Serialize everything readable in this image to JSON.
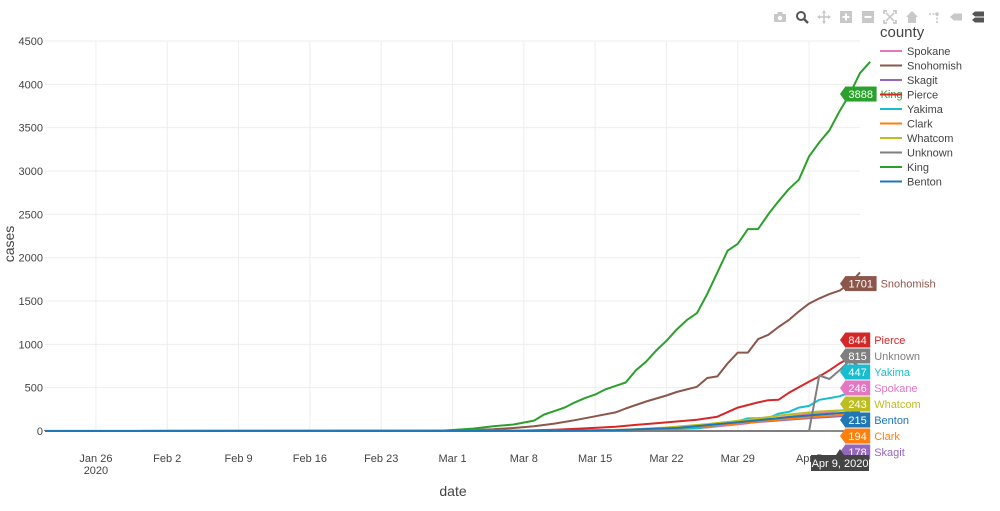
{
  "modebar": {
    "icons": [
      "camera-icon",
      "zoom-icon",
      "pan-icon",
      "zoom-in-icon",
      "zoom-out-icon",
      "autoscale-icon",
      "home-icon",
      "spike-lines-icon",
      "hover-closest-icon",
      "hover-compare-icon"
    ]
  },
  "chart_data": {
    "type": "line",
    "xlabel": "date",
    "ylabel": "cases",
    "ylim": [
      0,
      4500
    ],
    "yticks": [
      0,
      500,
      1000,
      1500,
      2000,
      2500,
      3000,
      3500,
      4000,
      4500
    ],
    "x_start": "2020-01-21",
    "x_end": "2020-04-10",
    "xticks": [
      {
        "date": "2020-01-26",
        "label": "Jan 26",
        "sublabel": "2020"
      },
      {
        "date": "2020-02-02",
        "label": "Feb 2"
      },
      {
        "date": "2020-02-09",
        "label": "Feb 9"
      },
      {
        "date": "2020-02-16",
        "label": "Feb 16"
      },
      {
        "date": "2020-02-23",
        "label": "Feb 23"
      },
      {
        "date": "2020-03-01",
        "label": "Mar 1"
      },
      {
        "date": "2020-03-08",
        "label": "Mar 8"
      },
      {
        "date": "2020-03-15",
        "label": "Mar 15"
      },
      {
        "date": "2020-03-22",
        "label": "Mar 22"
      },
      {
        "date": "2020-03-29",
        "label": "Mar 29"
      },
      {
        "date": "2020-04-05",
        "label": "Apr 5"
      }
    ],
    "grid": true,
    "legend": {
      "title": "county",
      "placement": "top-right"
    },
    "hover_date": "Apr 9, 2020",
    "series": [
      {
        "name": "Spokane",
        "color": "#e377c2",
        "hover": 246,
        "points": [
          [
            "2020-01-21",
            0
          ],
          [
            "2020-03-14",
            2
          ],
          [
            "2020-03-20",
            10
          ],
          [
            "2020-03-26",
            40
          ],
          [
            "2020-03-30",
            90
          ],
          [
            "2020-04-02",
            150
          ],
          [
            "2020-04-06",
            210
          ],
          [
            "2020-04-09",
            246
          ],
          [
            "2020-04-10",
            255
          ]
        ]
      },
      {
        "name": "Snohomish",
        "color": "#8c564b",
        "hover": 1701,
        "points": [
          [
            "2020-01-21",
            0
          ],
          [
            "2020-01-21",
            1
          ],
          [
            "2020-02-28",
            2
          ],
          [
            "2020-03-01",
            5
          ],
          [
            "2020-03-03",
            12
          ],
          [
            "2020-03-05",
            20
          ],
          [
            "2020-03-07",
            35
          ],
          [
            "2020-03-09",
            55
          ],
          [
            "2020-03-11",
            85
          ],
          [
            "2020-03-13",
            125
          ],
          [
            "2020-03-15",
            170
          ],
          [
            "2020-03-17",
            215
          ],
          [
            "2020-03-18",
            260
          ],
          [
            "2020-03-19",
            300
          ],
          [
            "2020-03-20",
            340
          ],
          [
            "2020-03-21",
            375
          ],
          [
            "2020-03-22",
            410
          ],
          [
            "2020-03-23",
            450
          ],
          [
            "2020-03-24",
            480
          ],
          [
            "2020-03-25",
            510
          ],
          [
            "2020-03-26",
            612
          ],
          [
            "2020-03-27",
            630
          ],
          [
            "2020-03-28",
            780
          ],
          [
            "2020-03-29",
            905
          ],
          [
            "2020-03-30",
            905
          ],
          [
            "2020-03-31",
            1060
          ],
          [
            "2020-04-01",
            1110
          ],
          [
            "2020-04-02",
            1200
          ],
          [
            "2020-04-03",
            1280
          ],
          [
            "2020-04-04",
            1380
          ],
          [
            "2020-04-05",
            1470
          ],
          [
            "2020-04-06",
            1530
          ],
          [
            "2020-04-07",
            1580
          ],
          [
            "2020-04-08",
            1620
          ],
          [
            "2020-04-09",
            1701
          ],
          [
            "2020-04-10",
            1830
          ]
        ]
      },
      {
        "name": "Skagit",
        "color": "#9467bd",
        "hover": 178,
        "points": [
          [
            "2020-01-21",
            0
          ],
          [
            "2020-03-12",
            2
          ],
          [
            "2020-03-18",
            10
          ],
          [
            "2020-03-24",
            40
          ],
          [
            "2020-03-30",
            95
          ],
          [
            "2020-04-04",
            140
          ],
          [
            "2020-04-09",
            178
          ],
          [
            "2020-04-10",
            185
          ]
        ]
      },
      {
        "name": "Pierce",
        "color": "#d62728",
        "hover": 844,
        "points": [
          [
            "2020-01-21",
            0
          ],
          [
            "2020-03-05",
            2
          ],
          [
            "2020-03-08",
            6
          ],
          [
            "2020-03-11",
            15
          ],
          [
            "2020-03-14",
            30
          ],
          [
            "2020-03-17",
            50
          ],
          [
            "2020-03-19",
            70
          ],
          [
            "2020-03-21",
            90
          ],
          [
            "2020-03-23",
            110
          ],
          [
            "2020-03-25",
            130
          ],
          [
            "2020-03-27",
            165
          ],
          [
            "2020-03-29",
            270
          ],
          [
            "2020-03-31",
            330
          ],
          [
            "2020-04-01",
            355
          ],
          [
            "2020-04-02",
            360
          ],
          [
            "2020-04-03",
            440
          ],
          [
            "2020-04-05",
            570
          ],
          [
            "2020-04-06",
            630
          ],
          [
            "2020-04-07",
            700
          ],
          [
            "2020-04-08",
            780
          ],
          [
            "2020-04-09",
            844
          ],
          [
            "2020-04-10",
            860
          ]
        ]
      },
      {
        "name": "Yakima",
        "color": "#17becf",
        "hover": 447,
        "points": [
          [
            "2020-01-21",
            0
          ],
          [
            "2020-03-15",
            2
          ],
          [
            "2020-03-20",
            10
          ],
          [
            "2020-03-25",
            30
          ],
          [
            "2020-03-28",
            80
          ],
          [
            "2020-03-30",
            145
          ],
          [
            "2020-04-01",
            150
          ],
          [
            "2020-04-02",
            200
          ],
          [
            "2020-04-03",
            220
          ],
          [
            "2020-04-04",
            270
          ],
          [
            "2020-04-05",
            290
          ],
          [
            "2020-04-06",
            360
          ],
          [
            "2020-04-07",
            380
          ],
          [
            "2020-04-08",
            400
          ],
          [
            "2020-04-09",
            447
          ],
          [
            "2020-04-10",
            460
          ]
        ]
      },
      {
        "name": "Clark",
        "color": "#ff7f0e",
        "hover": 194,
        "points": [
          [
            "2020-01-21",
            0
          ],
          [
            "2020-03-10",
            2
          ],
          [
            "2020-03-16",
            8
          ],
          [
            "2020-03-22",
            25
          ],
          [
            "2020-03-28",
            75
          ],
          [
            "2020-04-01",
            120
          ],
          [
            "2020-04-05",
            160
          ],
          [
            "2020-04-09",
            194
          ],
          [
            "2020-04-10",
            200
          ]
        ]
      },
      {
        "name": "Whatcom",
        "color": "#bcbd22",
        "hover": 243,
        "points": [
          [
            "2020-01-21",
            0
          ],
          [
            "2020-03-12",
            2
          ],
          [
            "2020-03-18",
            15
          ],
          [
            "2020-03-22",
            40
          ],
          [
            "2020-03-26",
            80
          ],
          [
            "2020-03-30",
            130
          ],
          [
            "2020-04-03",
            190
          ],
          [
            "2020-04-06",
            225
          ],
          [
            "2020-04-09",
            243
          ],
          [
            "2020-04-10",
            250
          ]
        ]
      },
      {
        "name": "Unknown",
        "color": "#7f7f7f",
        "hover": 815,
        "points": [
          [
            "2020-01-21",
            0
          ],
          [
            "2020-04-05",
            0
          ],
          [
            "2020-04-06",
            640
          ],
          [
            "2020-04-07",
            600
          ],
          [
            "2020-04-08",
            700
          ],
          [
            "2020-04-09",
            815
          ],
          [
            "2020-04-10",
            740
          ]
        ]
      },
      {
        "name": "King",
        "color": "#2ca02c",
        "hover": 3888,
        "points": [
          [
            "2020-01-21",
            0
          ],
          [
            "2020-02-27",
            1
          ],
          [
            "2020-02-29",
            5
          ],
          [
            "2020-03-01",
            12
          ],
          [
            "2020-03-03",
            28
          ],
          [
            "2020-03-05",
            55
          ],
          [
            "2020-03-07",
            75
          ],
          [
            "2020-03-09",
            120
          ],
          [
            "2020-03-10",
            190
          ],
          [
            "2020-03-11",
            230
          ],
          [
            "2020-03-12",
            270
          ],
          [
            "2020-03-13",
            330
          ],
          [
            "2020-03-14",
            380
          ],
          [
            "2020-03-15",
            420
          ],
          [
            "2020-03-16",
            480
          ],
          [
            "2020-03-17",
            520
          ],
          [
            "2020-03-18",
            560
          ],
          [
            "2020-03-19",
            700
          ],
          [
            "2020-03-20",
            800
          ],
          [
            "2020-03-21",
            930
          ],
          [
            "2020-03-22",
            1040
          ],
          [
            "2020-03-23",
            1170
          ],
          [
            "2020-03-24",
            1280
          ],
          [
            "2020-03-25",
            1360
          ],
          [
            "2020-03-26",
            1580
          ],
          [
            "2020-03-27",
            1830
          ],
          [
            "2020-03-28",
            2080
          ],
          [
            "2020-03-29",
            2160
          ],
          [
            "2020-03-30",
            2330
          ],
          [
            "2020-03-31",
            2330
          ],
          [
            "2020-04-01",
            2500
          ],
          [
            "2020-04-02",
            2650
          ],
          [
            "2020-04-03",
            2790
          ],
          [
            "2020-04-04",
            2900
          ],
          [
            "2020-04-05",
            3170
          ],
          [
            "2020-04-06",
            3330
          ],
          [
            "2020-04-07",
            3470
          ],
          [
            "2020-04-08",
            3690
          ],
          [
            "2020-04-09",
            3888
          ],
          [
            "2020-04-10",
            4130
          ],
          [
            "2020-04-11",
            4260
          ]
        ]
      },
      {
        "name": "Benton",
        "color": "#1f77b4",
        "hover": 215,
        "points": [
          [
            "2020-01-21",
            0
          ],
          [
            "2020-03-11",
            2
          ],
          [
            "2020-03-17",
            10
          ],
          [
            "2020-03-23",
            35
          ],
          [
            "2020-03-29",
            100
          ],
          [
            "2020-04-03",
            160
          ],
          [
            "2020-04-07",
            200
          ],
          [
            "2020-04-09",
            215
          ],
          [
            "2020-04-10",
            220
          ]
        ]
      }
    ]
  }
}
